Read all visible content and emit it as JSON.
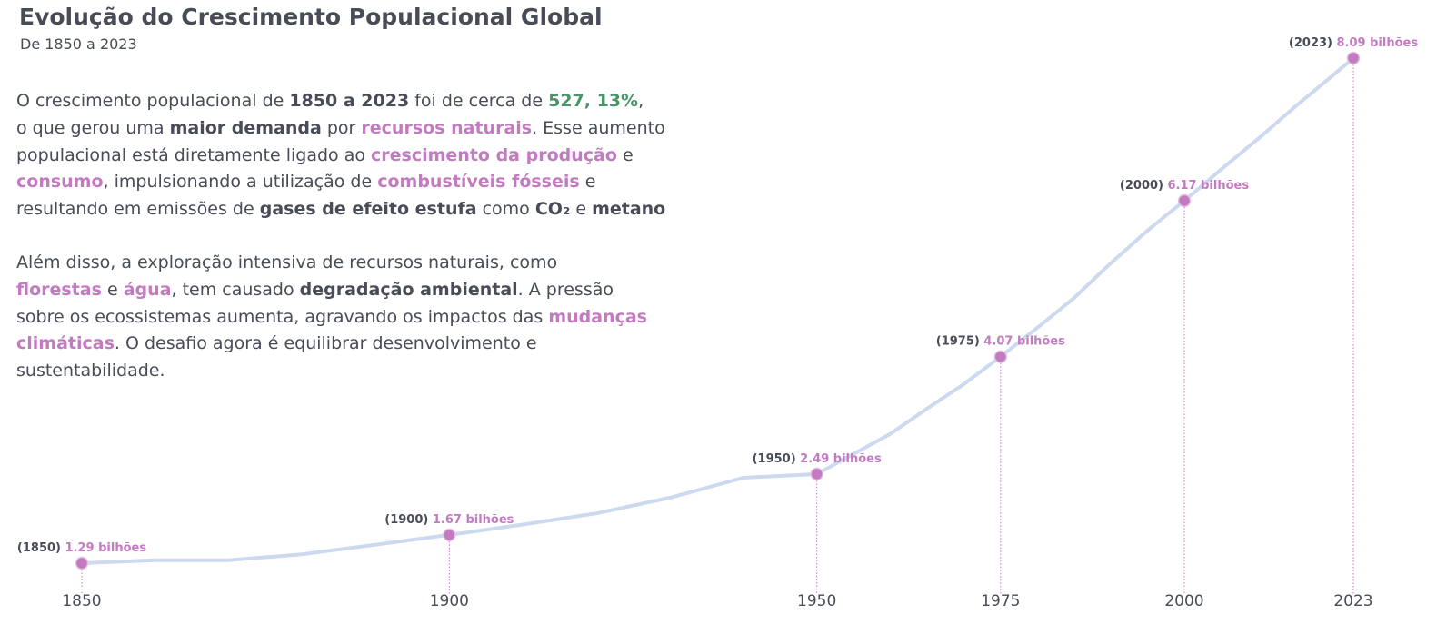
{
  "header": {
    "title": "Evolução do Crescimento Populacional Global",
    "subtitle": "De 1850 a 2023"
  },
  "colors": {
    "text": "#474c57",
    "accent": "#c27bc0",
    "highlight": "#4a9468",
    "line": "#cdd9ef"
  },
  "text": {
    "p1": [
      {
        "t": "O crescimento populacional de ",
        "s": ""
      },
      {
        "t": "1850 a 2023",
        "s": "b"
      },
      {
        "t": " foi de cerca de ",
        "s": ""
      },
      {
        "t": "527, 13%",
        "s": "g"
      },
      {
        "t": ",",
        "s": ""
      },
      {
        "br": true
      },
      {
        "t": "o que gerou uma ",
        "s": ""
      },
      {
        "t": "maior demanda",
        "s": "b"
      },
      {
        "t": " por ",
        "s": ""
      },
      {
        "t": "recursos naturais",
        "s": "p"
      },
      {
        "t": ". Esse aumento",
        "s": ""
      },
      {
        "br": true
      },
      {
        "t": "populacional está diretamente ligado ao ",
        "s": ""
      },
      {
        "t": "crescimento da produção",
        "s": "p"
      },
      {
        "t": " e",
        "s": ""
      },
      {
        "br": true
      },
      {
        "t": "consumo",
        "s": "p"
      },
      {
        "t": ", impulsionando a utilização de ",
        "s": ""
      },
      {
        "t": "combustíveis fósseis",
        "s": "p"
      },
      {
        "t": " e",
        "s": ""
      },
      {
        "br": true
      },
      {
        "t": "resultando em emissões de ",
        "s": ""
      },
      {
        "t": "gases de efeito estufa",
        "s": "b"
      },
      {
        "t": " como ",
        "s": ""
      },
      {
        "t": "CO₂",
        "s": "b"
      },
      {
        "t": " e ",
        "s": ""
      },
      {
        "t": "metano",
        "s": "b"
      }
    ],
    "p2": [
      {
        "t": "Além disso, a exploração intensiva de recursos naturais, como",
        "s": ""
      },
      {
        "br": true
      },
      {
        "t": "florestas",
        "s": "p"
      },
      {
        "t": " e ",
        "s": ""
      },
      {
        "t": "água",
        "s": "p"
      },
      {
        "t": ", tem causado ",
        "s": ""
      },
      {
        "t": "degradação ambiental",
        "s": "b"
      },
      {
        "t": ". A pressão",
        "s": ""
      },
      {
        "br": true
      },
      {
        "t": "sobre os ecossistemas aumenta, agravando os impactos das ",
        "s": ""
      },
      {
        "t": "mudanças",
        "s": "p"
      },
      {
        "br": true
      },
      {
        "t": "climáticas",
        "s": "p"
      },
      {
        "t": ". O desafio agora é equilibrar desenvolvimento e",
        "s": ""
      },
      {
        "br": true
      },
      {
        "t": "sustentabilidade.",
        "s": ""
      }
    ]
  },
  "chart_data": {
    "type": "line",
    "xlim": [
      1850,
      2023
    ],
    "ylim": [
      1.1,
      8.25
    ],
    "grid": false,
    "xticks": [
      1850,
      1900,
      1950,
      1975,
      2000,
      2023
    ],
    "series": [
      {
        "x": [
          1850,
          1860,
          1870,
          1880,
          1890,
          1900,
          1910,
          1920,
          1930,
          1940,
          1950,
          1955,
          1960,
          1965,
          1970,
          1975,
          1980,
          1985,
          1990,
          1995,
          2000,
          2005,
          2010,
          2015,
          2020,
          2023
        ],
        "values": [
          1.29,
          1.33,
          1.33,
          1.41,
          1.54,
          1.67,
          1.81,
          1.96,
          2.17,
          2.44,
          2.49,
          2.76,
          3.03,
          3.37,
          3.7,
          4.07,
          4.46,
          4.86,
          5.33,
          5.77,
          6.17,
          6.59,
          7.0,
          7.43,
          7.84,
          8.09
        ]
      }
    ],
    "highlights": [
      {
        "year": 1850,
        "year_label": "(1850)",
        "value": 1.29,
        "label": "1.29 bilhões"
      },
      {
        "year": 1900,
        "year_label": "(1900)",
        "value": 1.67,
        "label": "1.67 bilhões"
      },
      {
        "year": 1950,
        "year_label": "(1950)",
        "value": 2.49,
        "label": "2.49 bilhões"
      },
      {
        "year": 1975,
        "year_label": "(1975)",
        "value": 4.07,
        "label": "4.07 bilhões"
      },
      {
        "year": 2000,
        "year_label": "(2000)",
        "value": 6.17,
        "label": "6.17 bilhões"
      },
      {
        "year": 2023,
        "year_label": "(2023)",
        "value": 8.09,
        "label": "8.09 bilhões"
      }
    ]
  }
}
